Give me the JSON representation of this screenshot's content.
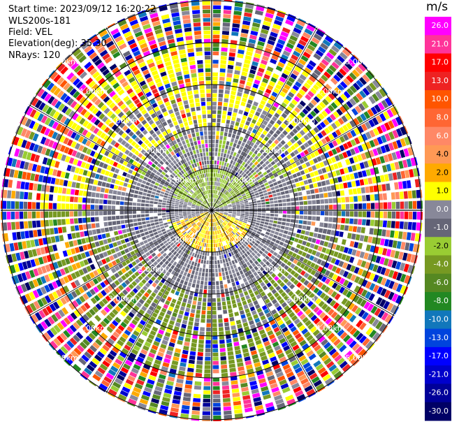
{
  "header": {
    "start_time": "Start time: 2023/09/12 16:20:22",
    "instrument": "WLS200s-181",
    "field": "Field: VEL",
    "elevation": "Elevation(deg): 35.30",
    "nrays": "NRays: 120"
  },
  "chart_data": {
    "type": "heatmap",
    "projection": "polar-ppi",
    "field": "VEL",
    "units": "m/s",
    "n_rays": 120,
    "range_max_km": 5.0,
    "range_ring_labels": [
      "1.00km",
      "2.00km",
      "3.00km",
      "4.00km",
      "5.00km"
    ],
    "spokes_deg_step": 30,
    "near_field_pattern": {
      "toward_south": "positive 1 to 4 m/s (yellow)",
      "toward_north": "negative -1 to -4 m/s (green)",
      "ring_1_to_2_km": "mostly near zero (gray)",
      "beyond_3_km": "noisy, full color range"
    },
    "colorbar": {
      "label": "m/s",
      "ticks": [
        "26.0",
        "21.0",
        "17.0",
        "13.0",
        "10.0",
        "8.0",
        "6.0",
        "4.0",
        "2.0",
        "1.0",
        "0.0",
        "-1.0",
        "-2.0",
        "-4.0",
        "-6.0",
        "-8.0",
        "-10.0",
        "-13.0",
        "-17.0",
        "-21.0",
        "-26.0",
        "-30.0"
      ],
      "colors": [
        "#ff00ff",
        "#ff3399",
        "#ff0000",
        "#ee2222",
        "#ff5500",
        "#ff6633",
        "#ff8866",
        "#ff9955",
        "#ffaa00",
        "#ffff00",
        "#888899",
        "#666677",
        "#99cc33",
        "#779922",
        "#558822",
        "#228822",
        "#1177bb",
        "#0044dd",
        "#0000ff",
        "#0000cc",
        "#000099",
        "#000066"
      ]
    }
  }
}
